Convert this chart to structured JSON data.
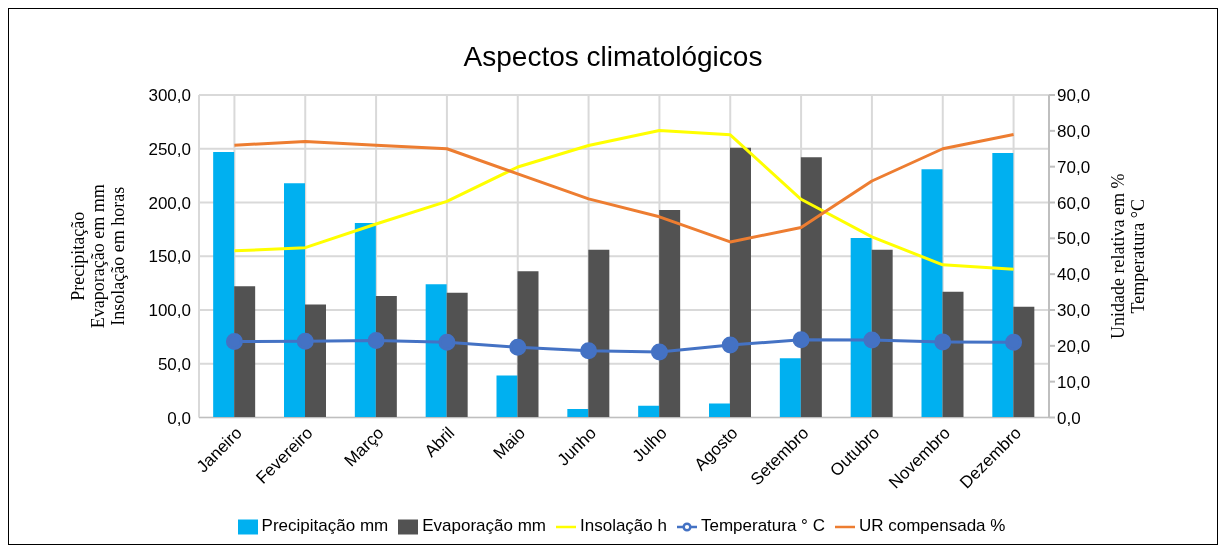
{
  "chart_data": {
    "type": "bar",
    "title": "Aspectos climatológicos",
    "ylabel": "Precipitação Evaporação em mm Insolação em horas",
    "y2label": "Unidade relativa em % Temperatura °C",
    "categories": [
      "Janeiro",
      "Fevereiro",
      "Março",
      "Abril",
      "Maio",
      "Junho",
      "Julho",
      "Agosto",
      "Setembro",
      "Outubro",
      "Novembro",
      "Dezembro"
    ],
    "series": [
      {
        "name": "Precipitação mm",
        "color": "#00b0f0",
        "values": [
          247,
          218,
          181,
          124,
          39,
          8,
          11,
          13,
          55,
          167,
          231,
          246
        ]
      },
      {
        "name": "Evaporação mm",
        "color": "#525252",
        "values": [
          122,
          105,
          113,
          116,
          136,
          156,
          193,
          251,
          242,
          156,
          117,
          103
        ]
      },
      {
        "name": "Insolação h",
        "type": "line",
        "color": "#ffff00",
        "marker": "none",
        "values": [
          155,
          158,
          180,
          201,
          233,
          253,
          267,
          263,
          203,
          168,
          142,
          138
        ]
      },
      {
        "name": "Temperatura ° C",
        "type": "line",
        "axis": "y2",
        "color": "#4472c4",
        "marker": "circle",
        "values": [
          21.2,
          21.3,
          21.5,
          21.0,
          19.6,
          18.6,
          18.3,
          20.2,
          21.7,
          21.6,
          21.1,
          21.0
        ]
      },
      {
        "name": "UR compensada %",
        "type": "line",
        "axis": "y2",
        "color": "#ed7d31",
        "marker": "none",
        "values": [
          76,
          77,
          76,
          75,
          68,
          61,
          56,
          49,
          53,
          66,
          75,
          79
        ]
      }
    ],
    "ylim": [
      0,
      300
    ],
    "yticks": [
      {
        "value": 0,
        "label": "0,0"
      },
      {
        "value": 50,
        "label": "50,0"
      },
      {
        "value": 100,
        "label": "100,0"
      },
      {
        "value": 150,
        "label": "150,0"
      },
      {
        "value": 200,
        "label": "200,0"
      },
      {
        "value": 250,
        "label": "250,0"
      },
      {
        "value": 300,
        "label": "300,0"
      }
    ],
    "y2lim": [
      0,
      90
    ],
    "y2ticks": [
      {
        "value": 0,
        "label": "0,0"
      },
      {
        "value": 10,
        "label": "10,0"
      },
      {
        "value": 20,
        "label": "20,0"
      },
      {
        "value": 30,
        "label": "30,0"
      },
      {
        "value": 40,
        "label": "40,0"
      },
      {
        "value": 50,
        "label": "50,0"
      },
      {
        "value": 60,
        "label": "60,0"
      },
      {
        "value": 70,
        "label": "70,0"
      },
      {
        "value": 80,
        "label": "80,0"
      },
      {
        "value": 90,
        "label": "90,0"
      }
    ],
    "grid": true,
    "legend": "bottom"
  }
}
